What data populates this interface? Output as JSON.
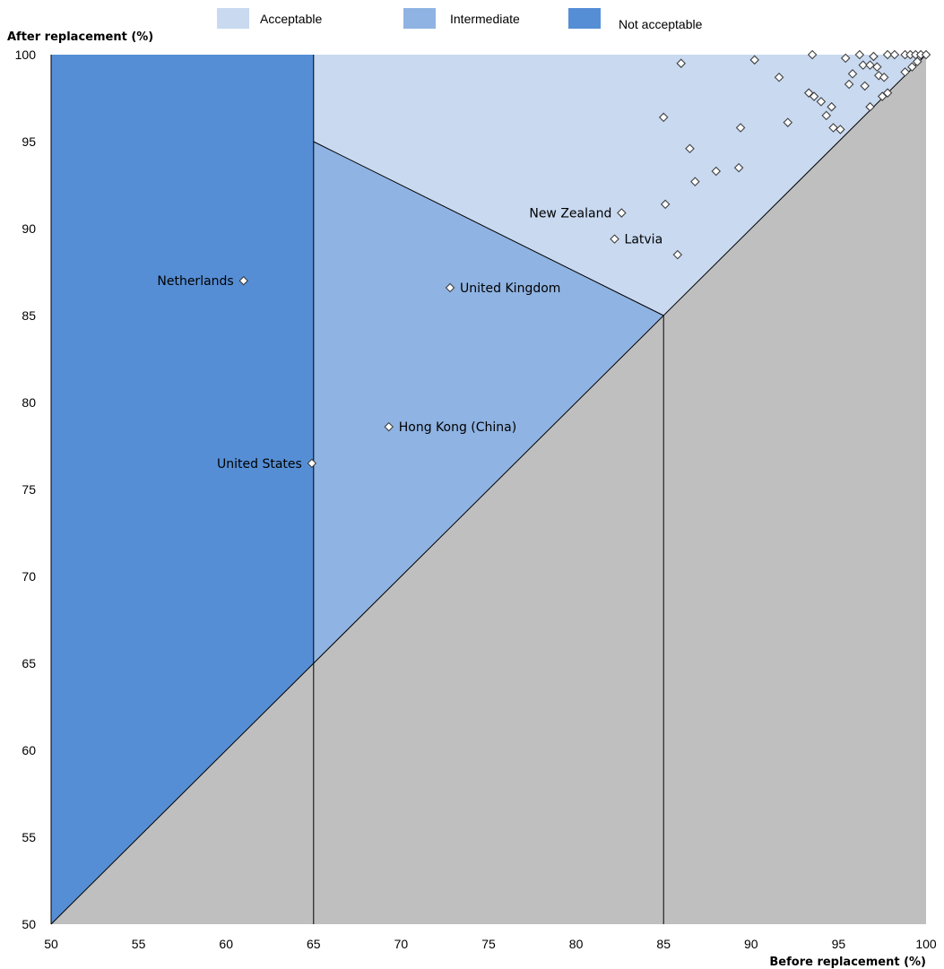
{
  "chart_data": {
    "type": "scatter",
    "xlabel": "Before replacement (%)",
    "ylabel": "After replacement (%)",
    "xlim": [
      50,
      100
    ],
    "ylim": [
      50,
      100
    ],
    "xticks": [
      50,
      55,
      60,
      65,
      70,
      75,
      80,
      85,
      90,
      95,
      100
    ],
    "yticks": [
      50,
      55,
      60,
      65,
      70,
      75,
      80,
      85,
      90,
      95,
      100
    ],
    "grid": false,
    "legend_position": "top",
    "legend": [
      {
        "label": "Acceptable",
        "color": "#c8d9f0"
      },
      {
        "label": "Intermediate",
        "color": "#8fb3e2"
      },
      {
        "label": "Not acceptable",
        "color": "#558ed5"
      }
    ],
    "below_diagonal_color": "#bfbfbf",
    "labeled_points": [
      {
        "label": "Netherlands",
        "x": 61.0,
        "y": 87.0,
        "side": "left"
      },
      {
        "label": "United Kingdom",
        "x": 72.8,
        "y": 86.6,
        "side": "right"
      },
      {
        "label": "Hong Kong (China)",
        "x": 69.3,
        "y": 78.6,
        "side": "right"
      },
      {
        "label": "United States",
        "x": 64.9,
        "y": 76.5,
        "side": "left"
      },
      {
        "label": "New Zealand",
        "x": 82.6,
        "y": 90.9,
        "side": "left"
      },
      {
        "label": "Latvia",
        "x": 82.2,
        "y": 89.4,
        "side": "right"
      }
    ],
    "points": [
      {
        "x": 86.0,
        "y": 99.5
      },
      {
        "x": 90.2,
        "y": 99.7
      },
      {
        "x": 93.5,
        "y": 100.0
      },
      {
        "x": 95.4,
        "y": 99.8
      },
      {
        "x": 96.2,
        "y": 100.0
      },
      {
        "x": 97.0,
        "y": 99.9
      },
      {
        "x": 97.8,
        "y": 100.0
      },
      {
        "x": 98.2,
        "y": 100.0
      },
      {
        "x": 98.8,
        "y": 100.0
      },
      {
        "x": 99.1,
        "y": 100.0
      },
      {
        "x": 99.4,
        "y": 100.0
      },
      {
        "x": 99.7,
        "y": 100.0
      },
      {
        "x": 100.0,
        "y": 100.0
      },
      {
        "x": 96.4,
        "y": 99.4
      },
      {
        "x": 96.8,
        "y": 99.4
      },
      {
        "x": 97.2,
        "y": 99.3
      },
      {
        "x": 91.6,
        "y": 98.7
      },
      {
        "x": 95.8,
        "y": 98.9
      },
      {
        "x": 96.5,
        "y": 98.2
      },
      {
        "x": 97.3,
        "y": 98.8
      },
      {
        "x": 97.6,
        "y": 98.7
      },
      {
        "x": 95.6,
        "y": 98.3
      },
      {
        "x": 98.8,
        "y": 99.0
      },
      {
        "x": 99.2,
        "y": 99.3
      },
      {
        "x": 99.5,
        "y": 99.6
      },
      {
        "x": 93.3,
        "y": 97.8
      },
      {
        "x": 93.6,
        "y": 97.6
      },
      {
        "x": 94.0,
        "y": 97.3
      },
      {
        "x": 94.6,
        "y": 97.0
      },
      {
        "x": 94.3,
        "y": 96.5
      },
      {
        "x": 97.5,
        "y": 97.6
      },
      {
        "x": 97.8,
        "y": 97.8
      },
      {
        "x": 96.8,
        "y": 97.0
      },
      {
        "x": 85.0,
        "y": 96.4
      },
      {
        "x": 92.1,
        "y": 96.1
      },
      {
        "x": 89.4,
        "y": 95.8
      },
      {
        "x": 94.7,
        "y": 95.8
      },
      {
        "x": 95.1,
        "y": 95.7
      },
      {
        "x": 86.5,
        "y": 94.6
      },
      {
        "x": 88.0,
        "y": 93.3
      },
      {
        "x": 89.3,
        "y": 93.5
      },
      {
        "x": 86.8,
        "y": 92.7
      },
      {
        "x": 85.1,
        "y": 91.4
      },
      {
        "x": 85.8,
        "y": 88.5
      }
    ]
  }
}
